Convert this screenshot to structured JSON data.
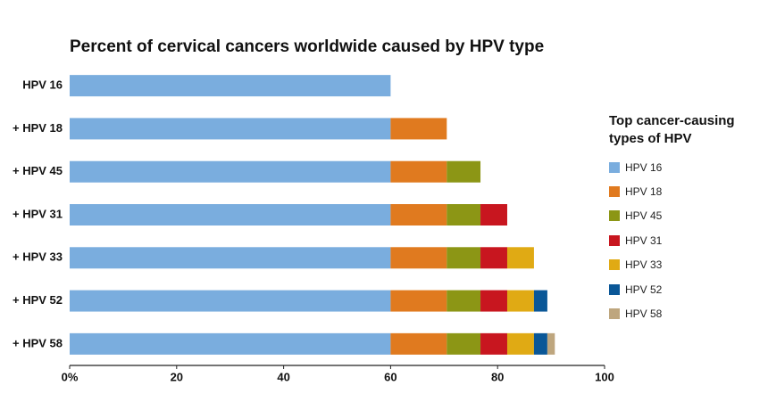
{
  "chart_data": {
    "type": "stacked-bar-horizontal",
    "title": "Percent of cervical cancers worldwide caused by HPV type",
    "legend_title": "Top cancer-causing types of HPV",
    "legend_position": "right",
    "categories": [
      "HPV 16",
      "+ HPV 18",
      "+ HPV 45",
      "+ HPV 31",
      "+ HPV 33",
      "+ HPV 52",
      "+ HPV 58"
    ],
    "series": [
      {
        "name": "HPV 16",
        "color": "#7aadde",
        "values": [
          60,
          60,
          60,
          60,
          60,
          60,
          60
        ]
      },
      {
        "name": "HPV 18",
        "color": "#e07a1f",
        "values": [
          null,
          10.5,
          10.5,
          10.5,
          10.5,
          10.5,
          10.5
        ]
      },
      {
        "name": "HPV 45",
        "color": "#8c9615",
        "values": [
          null,
          null,
          6.3,
          6.3,
          6.3,
          6.3,
          6.3
        ]
      },
      {
        "name": "HPV 31",
        "color": "#c8161f",
        "values": [
          null,
          null,
          null,
          5,
          5,
          5,
          5
        ]
      },
      {
        "name": "HPV 33",
        "color": "#e0aa14",
        "values": [
          null,
          null,
          null,
          null,
          5,
          5,
          5
        ]
      },
      {
        "name": "HPV 52",
        "color": "#0a5797",
        "values": [
          null,
          null,
          null,
          null,
          null,
          2.5,
          2.5
        ]
      },
      {
        "name": "HPV 58",
        "color": "#bea67e",
        "values": [
          null,
          null,
          null,
          null,
          null,
          null,
          1.4
        ]
      }
    ],
    "xlim": [
      0,
      100
    ],
    "xticks": [
      {
        "value": 0,
        "label": "0%"
      },
      20,
      40,
      60,
      80,
      100
    ]
  }
}
